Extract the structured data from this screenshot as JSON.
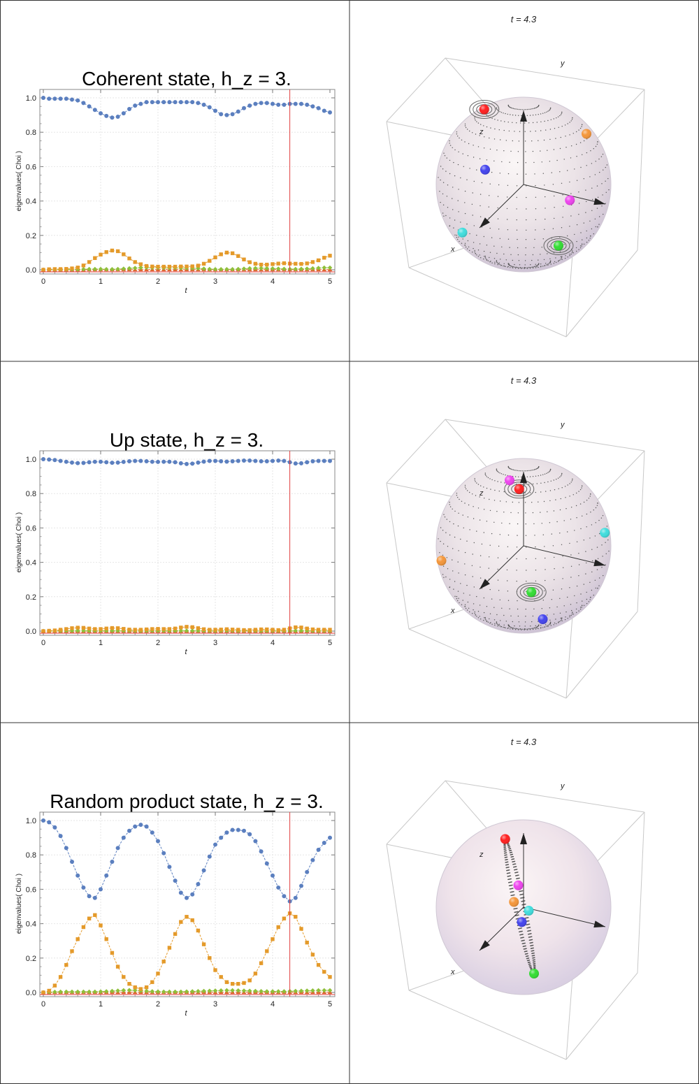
{
  "layout_note_free": true,
  "panels": [
    {
      "title": "Coherent state, h_z = 3.",
      "bloch_title": "t = 4.3",
      "markers": [
        {
          "color": "#ff2020",
          "u": -0.45,
          "v": 0.86
        },
        {
          "color": "#f4963a",
          "u": 0.72,
          "v": 0.58
        },
        {
          "color": "#4444ee",
          "u": -0.44,
          "v": 0.17
        },
        {
          "color": "#ee44ee",
          "u": 0.53,
          "v": -0.18
        },
        {
          "color": "#40dddd",
          "u": -0.7,
          "v": -0.55
        },
        {
          "color": "#33dd33",
          "u": 0.4,
          "v": -0.7
        }
      ],
      "rings": [
        {
          "u": -0.45,
          "v": 0.86
        },
        {
          "u": 0.4,
          "v": -0.7
        }
      ],
      "tilt": "none"
    },
    {
      "title": "Up state, h_z = 3.",
      "bloch_title": "t = 4.3",
      "markers": [
        {
          "color": "#ee44ee",
          "u": -0.16,
          "v": 0.75
        },
        {
          "color": "#ff2020",
          "u": -0.05,
          "v": 0.65
        },
        {
          "color": "#40dddd",
          "u": 0.93,
          "v": 0.15
        },
        {
          "color": "#f4963a",
          "u": -0.94,
          "v": -0.17
        },
        {
          "color": "#33dd33",
          "u": 0.09,
          "v": -0.53
        },
        {
          "color": "#4444ee",
          "u": 0.22,
          "v": -0.84
        }
      ],
      "rings": [
        {
          "u": -0.05,
          "v": 0.65
        },
        {
          "u": 0.09,
          "v": -0.53
        }
      ],
      "tilt": "none"
    },
    {
      "title": "Random product state, h_z = 3.",
      "bloch_title": "t = 4.3",
      "markers": [
        {
          "color": "#ff2020",
          "u": -0.21,
          "v": 0.78
        },
        {
          "color": "#ee44ee",
          "u": -0.06,
          "v": 0.25
        },
        {
          "color": "#f4963a",
          "u": -0.11,
          "v": 0.06
        },
        {
          "color": "#40dddd",
          "u": 0.06,
          "v": -0.04
        },
        {
          "color": "#4444ee",
          "u": -0.02,
          "v": -0.17
        },
        {
          "color": "#33dd33",
          "u": 0.12,
          "v": -0.76
        }
      ],
      "rings": [],
      "tilt": "band"
    }
  ],
  "axis_labels": {
    "x": "x",
    "y": "y",
    "z": "z"
  },
  "chart_data": [
    {
      "type": "scatter",
      "title": "Coherent state, h_z = 3.",
      "xlabel": "t",
      "ylabel": "eigenvalues( Choi )",
      "xlim": [
        0,
        5
      ],
      "ylim": [
        0,
        1.0
      ],
      "xticks": [
        0,
        1,
        2,
        3,
        4,
        5
      ],
      "yticks": [
        0.0,
        0.2,
        0.4,
        0.6,
        0.8,
        1.0
      ],
      "marker_line_t": 4.3,
      "x": [
        0,
        0.1,
        0.2,
        0.3,
        0.4,
        0.5,
        0.6,
        0.7,
        0.8,
        0.9,
        1.0,
        1.1,
        1.2,
        1.3,
        1.4,
        1.5,
        1.6,
        1.7,
        1.8,
        1.9,
        2.0,
        2.1,
        2.2,
        2.3,
        2.4,
        2.5,
        2.6,
        2.7,
        2.8,
        2.9,
        3.0,
        3.1,
        3.2,
        3.3,
        3.4,
        3.5,
        3.6,
        3.7,
        3.8,
        3.9,
        4.0,
        4.1,
        4.2,
        4.3,
        4.4,
        4.5,
        4.6,
        4.7,
        4.8,
        4.9,
        5.0
      ],
      "series": [
        {
          "name": "",
          "color": "#5b7fbf",
          "marker": "circle",
          "values": [
            1.0,
            0.995,
            0.995,
            0.995,
            0.995,
            0.99,
            0.985,
            0.97,
            0.95,
            0.93,
            0.91,
            0.895,
            0.885,
            0.89,
            0.91,
            0.935,
            0.955,
            0.965,
            0.975,
            0.975,
            0.975,
            0.975,
            0.975,
            0.975,
            0.975,
            0.975,
            0.975,
            0.97,
            0.96,
            0.945,
            0.925,
            0.905,
            0.9,
            0.905,
            0.92,
            0.94,
            0.955,
            0.965,
            0.97,
            0.97,
            0.965,
            0.96,
            0.96,
            0.965,
            0.965,
            0.965,
            0.96,
            0.95,
            0.94,
            0.925,
            0.915
          ]
        },
        {
          "name": "",
          "color": "#e49a2a",
          "marker": "square",
          "values": [
            0.0,
            0.003,
            0.004,
            0.004,
            0.005,
            0.008,
            0.013,
            0.025,
            0.045,
            0.068,
            0.088,
            0.103,
            0.112,
            0.108,
            0.09,
            0.066,
            0.045,
            0.032,
            0.022,
            0.019,
            0.018,
            0.018,
            0.018,
            0.018,
            0.019,
            0.019,
            0.02,
            0.024,
            0.035,
            0.052,
            0.072,
            0.09,
            0.1,
            0.096,
            0.08,
            0.06,
            0.044,
            0.035,
            0.03,
            0.03,
            0.033,
            0.036,
            0.038,
            0.036,
            0.035,
            0.034,
            0.037,
            0.045,
            0.055,
            0.07,
            0.082
          ]
        },
        {
          "name": "",
          "color": "#8fbf3a",
          "marker": "diamond",
          "values": [
            0.0,
            0.001,
            0.001,
            0.001,
            0.001,
            0.002,
            0.002,
            0.003,
            0.004,
            0.004,
            0.004,
            0.003,
            0.003,
            0.004,
            0.006,
            0.008,
            0.01,
            0.012,
            0.013,
            0.012,
            0.012,
            0.011,
            0.011,
            0.011,
            0.01,
            0.01,
            0.009,
            0.008,
            0.006,
            0.004,
            0.003,
            0.003,
            0.003,
            0.003,
            0.004,
            0.006,
            0.008,
            0.009,
            0.009,
            0.008,
            0.007,
            0.006,
            0.005,
            0.004,
            0.004,
            0.005,
            0.006,
            0.008,
            0.01,
            0.012,
            0.012
          ]
        },
        {
          "name": "",
          "color": "#e0622a",
          "marker": "triangle",
          "values": [
            0.0,
            0.0,
            0.0,
            0.0,
            0.0,
            0.0,
            0.0,
            0.0,
            0.001,
            0.001,
            0.001,
            0.001,
            0.001,
            0.001,
            0.001,
            0.001,
            0.001,
            0.001,
            0.001,
            0.001,
            0.001,
            0.001,
            0.001,
            0.001,
            0.001,
            0.001,
            0.001,
            0.001,
            0.001,
            0.001,
            0.001,
            0.001,
            0.001,
            0.001,
            0.001,
            0.001,
            0.001,
            0.001,
            0.001,
            0.001,
            0.001,
            0.001,
            0.001,
            0.001,
            0.001,
            0.001,
            0.001,
            0.001,
            0.001,
            0.001,
            0.001
          ]
        }
      ]
    },
    {
      "type": "scatter",
      "title": "Up state, h_z = 3.",
      "xlabel": "t",
      "ylabel": "eigenvalues( Choi )",
      "xlim": [
        0,
        5
      ],
      "ylim": [
        0,
        1.0
      ],
      "xticks": [
        0,
        1,
        2,
        3,
        4,
        5
      ],
      "yticks": [
        0.0,
        0.2,
        0.4,
        0.6,
        0.8,
        1.0
      ],
      "marker_line_t": 4.3,
      "x": [
        0,
        0.1,
        0.2,
        0.3,
        0.4,
        0.5,
        0.6,
        0.7,
        0.8,
        0.9,
        1.0,
        1.1,
        1.2,
        1.3,
        1.4,
        1.5,
        1.6,
        1.7,
        1.8,
        1.9,
        2.0,
        2.1,
        2.2,
        2.3,
        2.4,
        2.5,
        2.6,
        2.7,
        2.8,
        2.9,
        3.0,
        3.1,
        3.2,
        3.3,
        3.4,
        3.5,
        3.6,
        3.7,
        3.8,
        3.9,
        4.0,
        4.1,
        4.2,
        4.3,
        4.4,
        4.5,
        4.6,
        4.7,
        4.8,
        4.9,
        5.0
      ],
      "series": [
        {
          "name": "",
          "color": "#5b7fbf",
          "marker": "circle",
          "values": [
            1.0,
            0.998,
            0.995,
            0.99,
            0.985,
            0.98,
            0.977,
            0.978,
            0.982,
            0.985,
            0.985,
            0.982,
            0.979,
            0.98,
            0.984,
            0.988,
            0.99,
            0.99,
            0.988,
            0.985,
            0.984,
            0.985,
            0.985,
            0.982,
            0.976,
            0.972,
            0.974,
            0.98,
            0.986,
            0.99,
            0.99,
            0.988,
            0.986,
            0.988,
            0.99,
            0.992,
            0.992,
            0.99,
            0.988,
            0.988,
            0.99,
            0.992,
            0.99,
            0.982,
            0.975,
            0.976,
            0.982,
            0.988,
            0.99,
            0.99,
            0.99
          ]
        },
        {
          "name": "",
          "color": "#e49a2a",
          "marker": "square",
          "values": [
            0.0,
            0.002,
            0.004,
            0.008,
            0.012,
            0.017,
            0.02,
            0.019,
            0.015,
            0.012,
            0.012,
            0.015,
            0.018,
            0.017,
            0.013,
            0.009,
            0.008,
            0.008,
            0.01,
            0.012,
            0.013,
            0.012,
            0.012,
            0.015,
            0.021,
            0.025,
            0.023,
            0.017,
            0.011,
            0.008,
            0.008,
            0.009,
            0.011,
            0.009,
            0.008,
            0.006,
            0.006,
            0.008,
            0.01,
            0.01,
            0.008,
            0.006,
            0.008,
            0.016,
            0.022,
            0.021,
            0.015,
            0.01,
            0.008,
            0.008,
            0.008
          ]
        },
        {
          "name": "",
          "color": "#8fbf3a",
          "marker": "diamond",
          "values": [
            0.0,
            0.0,
            0.001,
            0.001,
            0.002,
            0.002,
            0.002,
            0.002,
            0.002,
            0.002,
            0.002,
            0.002,
            0.002,
            0.002,
            0.002,
            0.002,
            0.001,
            0.001,
            0.001,
            0.002,
            0.002,
            0.002,
            0.002,
            0.002,
            0.002,
            0.002,
            0.002,
            0.002,
            0.002,
            0.001,
            0.001,
            0.002,
            0.002,
            0.002,
            0.001,
            0.001,
            0.001,
            0.001,
            0.001,
            0.001,
            0.001,
            0.001,
            0.001,
            0.001,
            0.002,
            0.002,
            0.002,
            0.001,
            0.001,
            0.001,
            0.001
          ]
        },
        {
          "name": "",
          "color": "#e0622a",
          "marker": "triangle",
          "values": [
            0.0,
            0.0,
            0.0,
            0.0,
            0.0,
            0.0,
            0.0,
            0.0,
            0.0,
            0.0,
            0.0,
            0.0,
            0.0,
            0.0,
            0.0,
            0.0,
            0.0,
            0.0,
            0.0,
            0.0,
            0.0,
            0.0,
            0.0,
            0.0,
            0.0,
            0.0,
            0.0,
            0.0,
            0.0,
            0.0,
            0.0,
            0.0,
            0.0,
            0.0,
            0.0,
            0.0,
            0.0,
            0.0,
            0.0,
            0.0,
            0.0,
            0.0,
            0.0,
            0.0,
            0.0,
            0.0,
            0.0,
            0.0,
            0.0,
            0.0,
            0.0
          ]
        }
      ]
    },
    {
      "type": "scatter",
      "title": "Random product state, h_z = 3.",
      "xlabel": "t",
      "ylabel": "eigenvalues( Choi )",
      "xlim": [
        0,
        5
      ],
      "ylim": [
        0,
        1.0
      ],
      "xticks": [
        0,
        1,
        2,
        3,
        4,
        5
      ],
      "yticks": [
        0.0,
        0.2,
        0.4,
        0.6,
        0.8,
        1.0
      ],
      "marker_line_t": 4.3,
      "x": [
        0,
        0.1,
        0.2,
        0.3,
        0.4,
        0.5,
        0.6,
        0.7,
        0.8,
        0.9,
        1.0,
        1.1,
        1.2,
        1.3,
        1.4,
        1.5,
        1.6,
        1.7,
        1.8,
        1.9,
        2.0,
        2.1,
        2.2,
        2.3,
        2.4,
        2.5,
        2.6,
        2.7,
        2.8,
        2.9,
        3.0,
        3.1,
        3.2,
        3.3,
        3.4,
        3.5,
        3.6,
        3.7,
        3.8,
        3.9,
        4.0,
        4.1,
        4.2,
        4.3,
        4.4,
        4.5,
        4.6,
        4.7,
        4.8,
        4.9,
        5.0
      ],
      "series": [
        {
          "name": "",
          "color": "#5b7fbf",
          "marker": "circle",
          "values": [
            1.0,
            0.99,
            0.96,
            0.91,
            0.84,
            0.76,
            0.68,
            0.61,
            0.56,
            0.55,
            0.6,
            0.68,
            0.76,
            0.84,
            0.9,
            0.94,
            0.965,
            0.975,
            0.965,
            0.93,
            0.88,
            0.81,
            0.73,
            0.65,
            0.58,
            0.55,
            0.57,
            0.63,
            0.71,
            0.79,
            0.86,
            0.9,
            0.93,
            0.945,
            0.945,
            0.94,
            0.92,
            0.88,
            0.82,
            0.75,
            0.68,
            0.61,
            0.56,
            0.53,
            0.55,
            0.62,
            0.7,
            0.77,
            0.83,
            0.87,
            0.9
          ]
        },
        {
          "name": "",
          "color": "#e49a2a",
          "marker": "square",
          "values": [
            0.0,
            0.01,
            0.04,
            0.09,
            0.16,
            0.24,
            0.31,
            0.38,
            0.43,
            0.45,
            0.39,
            0.31,
            0.23,
            0.15,
            0.09,
            0.05,
            0.03,
            0.02,
            0.03,
            0.06,
            0.11,
            0.18,
            0.26,
            0.34,
            0.41,
            0.44,
            0.42,
            0.36,
            0.28,
            0.2,
            0.13,
            0.09,
            0.06,
            0.05,
            0.05,
            0.055,
            0.07,
            0.11,
            0.17,
            0.24,
            0.31,
            0.38,
            0.43,
            0.46,
            0.44,
            0.37,
            0.29,
            0.22,
            0.16,
            0.12,
            0.09
          ]
        },
        {
          "name": "",
          "color": "#8fbf3a",
          "marker": "diamond",
          "values": [
            0.0,
            0.002,
            0.003,
            0.004,
            0.004,
            0.004,
            0.004,
            0.004,
            0.004,
            0.004,
            0.005,
            0.006,
            0.008,
            0.01,
            0.012,
            0.013,
            0.012,
            0.01,
            0.008,
            0.006,
            0.005,
            0.004,
            0.004,
            0.004,
            0.004,
            0.005,
            0.006,
            0.007,
            0.008,
            0.009,
            0.01,
            0.011,
            0.012,
            0.012,
            0.011,
            0.01,
            0.009,
            0.008,
            0.007,
            0.006,
            0.006,
            0.006,
            0.006,
            0.007,
            0.008,
            0.009,
            0.01,
            0.011,
            0.012,
            0.012,
            0.012
          ]
        },
        {
          "name": "",
          "color": "#e0622a",
          "marker": "triangle",
          "values": [
            0.0,
            0.0,
            0.001,
            0.001,
            0.001,
            0.001,
            0.001,
            0.001,
            0.001,
            0.001,
            0.001,
            0.001,
            0.001,
            0.001,
            0.001,
            0.001,
            0.001,
            0.001,
            0.001,
            0.001,
            0.001,
            0.001,
            0.001,
            0.001,
            0.001,
            0.001,
            0.001,
            0.001,
            0.001,
            0.001,
            0.001,
            0.001,
            0.001,
            0.001,
            0.001,
            0.001,
            0.001,
            0.001,
            0.001,
            0.001,
            0.001,
            0.001,
            0.001,
            0.001,
            0.001,
            0.001,
            0.001,
            0.001,
            0.001,
            0.001,
            0.001
          ]
        }
      ]
    }
  ]
}
